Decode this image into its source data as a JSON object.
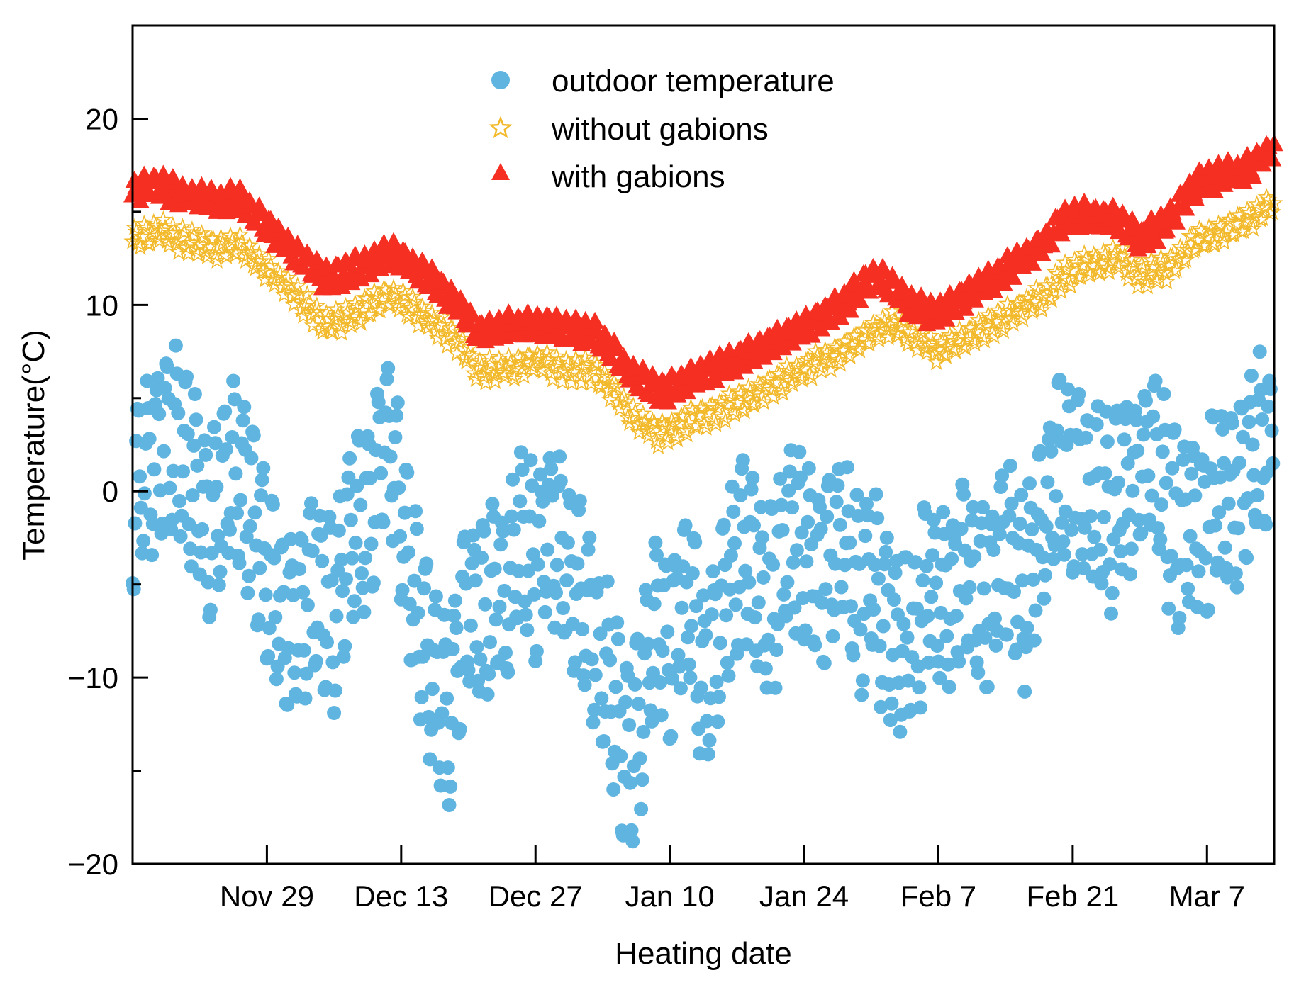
{
  "chart_data": {
    "type": "scatter",
    "title": "",
    "xlabel": "Heating date",
    "ylabel": "Temperature(°C)",
    "x_unit": "days since Nov 15",
    "xlim": [
      0,
      119
    ],
    "ylim": [
      -20,
      25
    ],
    "y_ticks": [
      {
        "value": -20,
        "label": "−20"
      },
      {
        "value": -10,
        "label": "−10"
      },
      {
        "value": 0,
        "label": "0"
      },
      {
        "value": 10,
        "label": "10"
      },
      {
        "value": 20,
        "label": "20"
      }
    ],
    "x_ticks": [
      {
        "value": 14,
        "label": "Nov 29"
      },
      {
        "value": 28,
        "label": "Dec 13"
      },
      {
        "value": 42,
        "label": "Dec 27"
      },
      {
        "value": 56,
        "label": "Jan 10"
      },
      {
        "value": 70,
        "label": "Jan 24"
      },
      {
        "value": 84,
        "label": "Feb 7"
      },
      {
        "value": 98,
        "label": "Feb 21"
      },
      {
        "value": 112,
        "label": "Mar 7"
      }
    ],
    "legend_position": "top-center",
    "series": [
      {
        "name": "outdoor temperature",
        "marker": "circle",
        "color": "#5fb4e0",
        "points_per_day": 8,
        "daily_mean": [
          -1.0,
          0.5,
          1.5,
          2.5,
          3.0,
          2.0,
          1.0,
          0.0,
          -2.0,
          -1.0,
          1.0,
          0.5,
          -0.5,
          -2.0,
          -4.5,
          -6.0,
          -7.5,
          -7.0,
          -6.0,
          -5.0,
          -5.5,
          -7.0,
          -4.0,
          -2.0,
          -1.5,
          -1.0,
          2.5,
          3.0,
          -2.0,
          -5.0,
          -7.5,
          -9.5,
          -11.0,
          -12.0,
          -8.0,
          -6.0,
          -6.5,
          -7.0,
          -5.0,
          -6.0,
          -3.5,
          -3.0,
          -4.0,
          -2.5,
          -2.0,
          -3.5,
          -4.5,
          -6.0,
          -7.5,
          -9.0,
          -11.0,
          -13.5,
          -14.0,
          -12.0,
          -8.5,
          -7.0,
          -8.5,
          -6.0,
          -5.5,
          -9.0,
          -10.5,
          -7.0,
          -5.0,
          -3.5,
          -3.0,
          -4.5,
          -6.0,
          -5.5,
          -3.0,
          -2.5,
          -3.0,
          -4.0,
          -4.5,
          -3.5,
          -3.0,
          -5.0,
          -6.0,
          -4.5,
          -6.5,
          -7.5,
          -8.0,
          -8.5,
          -7.0,
          -5.0,
          -5.5,
          -6.0,
          -5.0,
          -4.5,
          -5.0,
          -6.0,
          -4.0,
          -3.0,
          -4.5,
          -5.5,
          -3.0,
          -1.5,
          0.5,
          1.5,
          1.0,
          0.5,
          0.0,
          -0.5,
          -1.5,
          0.0,
          0.5,
          1.0,
          2.0,
          1.0,
          -1.0,
          -2.0,
          -1.5,
          -1.0,
          -2.0,
          -0.5,
          0.0,
          -1.0,
          1.0,
          2.0,
          2.5
        ],
        "daily_amplitude": 4.5
      },
      {
        "name": "without gabions",
        "marker": "star",
        "color": "#f2b92a",
        "points_per_day": 5,
        "daily_amplitude": 0.6,
        "anchors": [
          [
            0,
            13.5
          ],
          [
            3,
            14.0
          ],
          [
            5,
            13.5
          ],
          [
            9,
            13.0
          ],
          [
            11,
            13.2
          ],
          [
            16,
            11.0
          ],
          [
            20,
            9.0
          ],
          [
            22,
            9.2
          ],
          [
            27,
            10.5
          ],
          [
            30,
            9.5
          ],
          [
            34,
            8.0
          ],
          [
            36,
            6.5
          ],
          [
            38,
            6.5
          ],
          [
            42,
            7.0
          ],
          [
            45,
            6.5
          ],
          [
            48,
            6.5
          ],
          [
            50,
            5.5
          ],
          [
            52,
            4.0
          ],
          [
            55,
            3.0
          ],
          [
            58,
            3.8
          ],
          [
            62,
            4.5
          ],
          [
            66,
            5.5
          ],
          [
            70,
            6.5
          ],
          [
            74,
            7.5
          ],
          [
            77,
            8.5
          ],
          [
            79,
            9.0
          ],
          [
            81,
            8.5
          ],
          [
            84,
            7.5
          ],
          [
            86,
            8.0
          ],
          [
            90,
            9.0
          ],
          [
            95,
            10.5
          ],
          [
            97,
            11.5
          ],
          [
            99,
            12.0
          ],
          [
            103,
            12.5
          ],
          [
            105,
            11.5
          ],
          [
            108,
            12.0
          ],
          [
            111,
            13.5
          ],
          [
            114,
            14.0
          ],
          [
            116,
            14.5
          ],
          [
            119,
            15.5
          ]
        ]
      },
      {
        "name": "with gabions",
        "marker": "triangle",
        "color": "#f52f22",
        "points_per_day": 5,
        "daily_amplitude": 0.6,
        "anchors": [
          [
            0,
            16.0
          ],
          [
            2,
            16.5
          ],
          [
            5,
            16.0
          ],
          [
            9,
            15.5
          ],
          [
            11,
            15.7
          ],
          [
            16,
            13.3
          ],
          [
            20,
            11.5
          ],
          [
            22,
            11.7
          ],
          [
            27,
            12.8
          ],
          [
            30,
            11.8
          ],
          [
            34,
            10.0
          ],
          [
            36,
            8.5
          ],
          [
            38,
            8.8
          ],
          [
            42,
            9.0
          ],
          [
            45,
            8.8
          ],
          [
            48,
            8.5
          ],
          [
            50,
            7.5
          ],
          [
            52,
            6.3
          ],
          [
            55,
            5.3
          ],
          [
            58,
            6.0
          ],
          [
            62,
            6.8
          ],
          [
            66,
            7.8
          ],
          [
            70,
            8.8
          ],
          [
            74,
            10.0
          ],
          [
            77,
            11.5
          ],
          [
            79,
            11.2
          ],
          [
            81,
            10.0
          ],
          [
            84,
            9.5
          ],
          [
            86,
            10.2
          ],
          [
            90,
            11.5
          ],
          [
            95,
            13.3
          ],
          [
            97,
            14.5
          ],
          [
            99,
            14.8
          ],
          [
            103,
            14.5
          ],
          [
            105,
            13.5
          ],
          [
            108,
            14.5
          ],
          [
            111,
            16.5
          ],
          [
            114,
            17.0
          ],
          [
            116,
            17.2
          ],
          [
            119,
            18.5
          ]
        ]
      }
    ]
  }
}
